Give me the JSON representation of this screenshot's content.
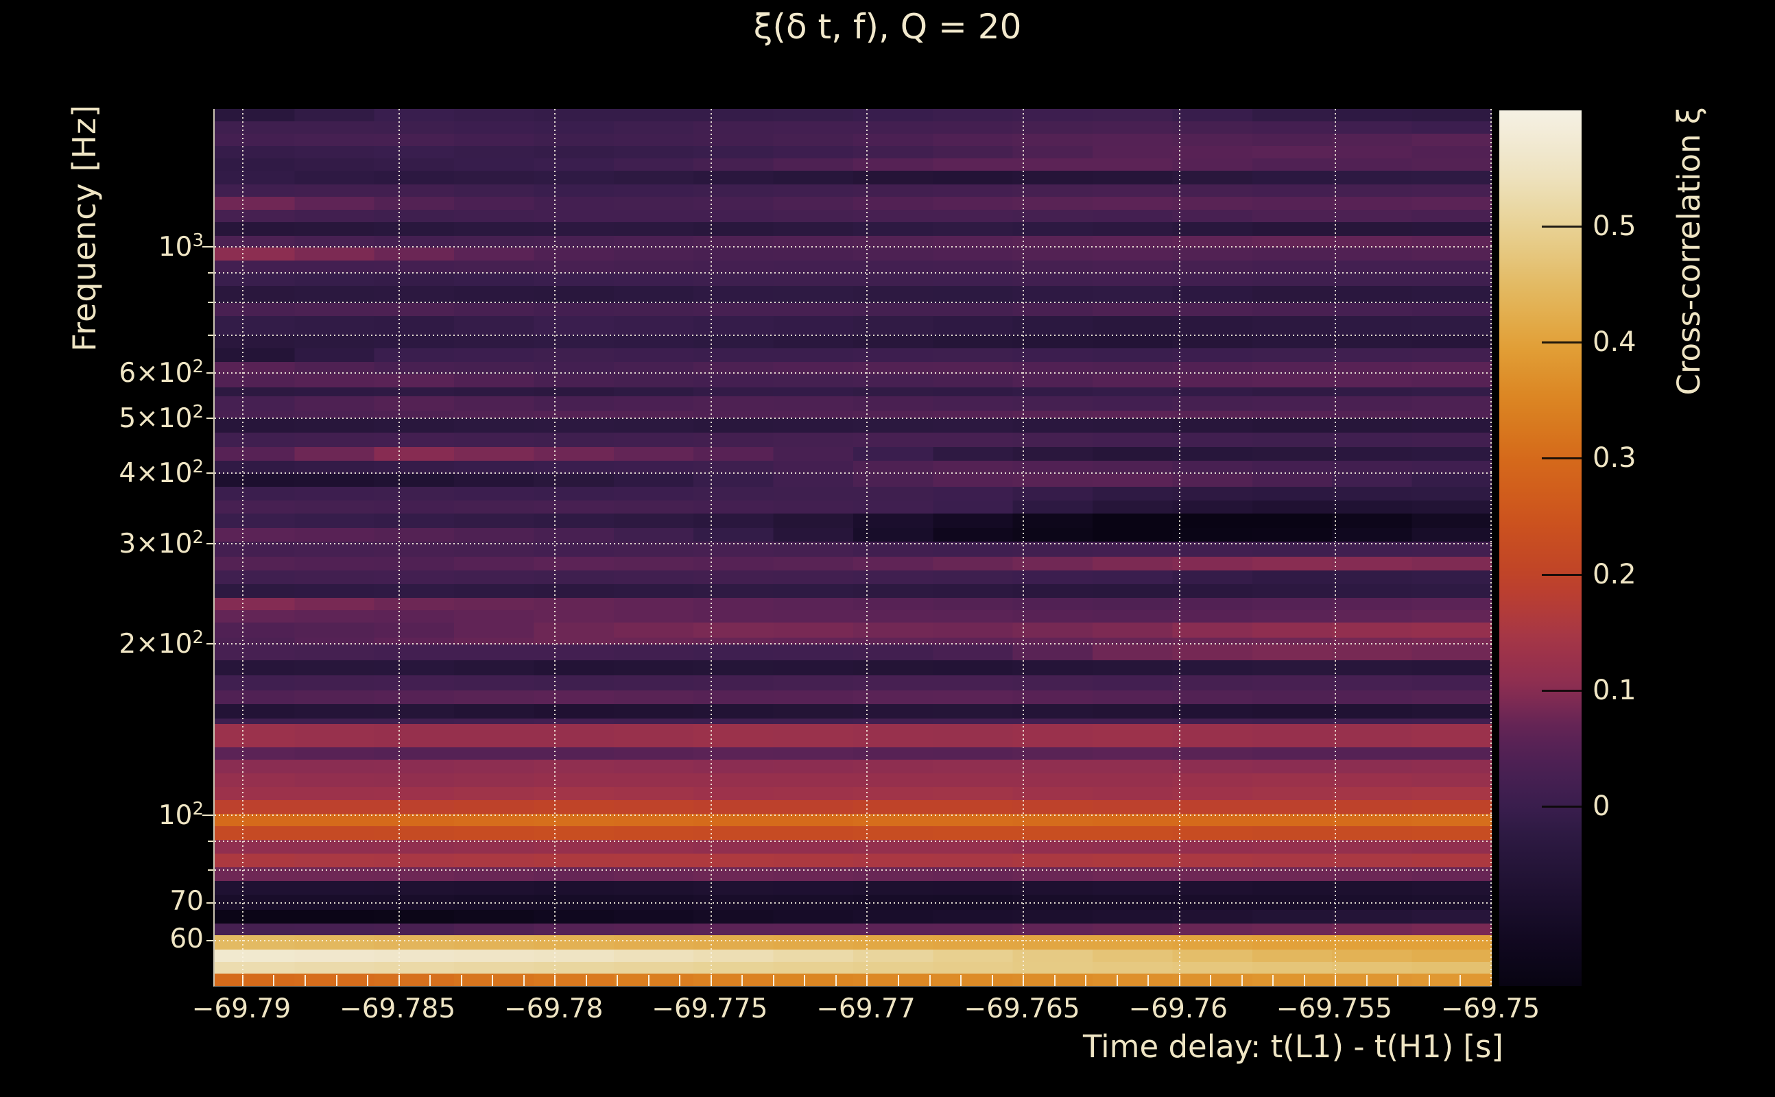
{
  "figure": {
    "title": "ξ(δ t, f), Q = 20"
  },
  "chart_data": {
    "type": "heatmap",
    "title": "ξ(δ t, f), Q = 20",
    "xlabel": "Time delay: t(L1) - t(H1) [s]",
    "ylabel": "Frequency [Hz]",
    "colorbar_label": "Cross-correlation ξ",
    "x_range": [
      -69.7909,
      -69.75
    ],
    "y_range_hz": [
      50,
      1750
    ],
    "y_scale": "log",
    "grid": true,
    "x_ticks": [
      {
        "label": "−69.79",
        "t": -69.79
      },
      {
        "label": "−69.785",
        "t": -69.785
      },
      {
        "label": "−69.78",
        "t": -69.78
      },
      {
        "label": "−69.775",
        "t": -69.775
      },
      {
        "label": "−69.77",
        "t": -69.77
      },
      {
        "label": "−69.765",
        "t": -69.765
      },
      {
        "label": "−69.76",
        "t": -69.76
      },
      {
        "label": "−69.755",
        "t": -69.755
      },
      {
        "label": "−69.75",
        "t": -69.75
      }
    ],
    "x_minor_step": 0.001,
    "y_ticks": [
      {
        "base": "10",
        "exp": "3",
        "f": 1000,
        "major": true
      },
      {
        "base": "6×10",
        "exp": "2",
        "f": 600,
        "major": false
      },
      {
        "base": "5×10",
        "exp": "2",
        "f": 500,
        "major": false
      },
      {
        "base": "4×10",
        "exp": "2",
        "f": 400,
        "major": false
      },
      {
        "base": "3×10",
        "exp": "2",
        "f": 300,
        "major": false
      },
      {
        "base": "2×10",
        "exp": "2",
        "f": 200,
        "major": false
      },
      {
        "base": "10",
        "exp": "2",
        "f": 100,
        "major": true
      },
      {
        "base": "70",
        "exp": "",
        "f": 70,
        "major": false
      },
      {
        "base": "60",
        "exp": "",
        "f": 60,
        "major": false
      }
    ],
    "y_minor_ticks": [
      900,
      800,
      700,
      90,
      80
    ],
    "colorbar": {
      "min": -0.155,
      "max": 0.6,
      "ticks": [
        {
          "label": "0.5",
          "v": 0.5
        },
        {
          "label": "0.4",
          "v": 0.4
        },
        {
          "label": "0.3",
          "v": 0.3
        },
        {
          "label": "0.2",
          "v": 0.2
        },
        {
          "label": "0.1",
          "v": 0.1
        },
        {
          "label": "0",
          "v": 0.0
        }
      ]
    },
    "colormap": [
      [
        -0.16,
        "#070310"
      ],
      [
        -0.12,
        "#10081f"
      ],
      [
        -0.08,
        "#1c0f2e"
      ],
      [
        -0.05,
        "#261539"
      ],
      [
        -0.02,
        "#2f1a44"
      ],
      [
        0.0,
        "#3a1e4e"
      ],
      [
        0.03,
        "#482052"
      ],
      [
        0.06,
        "#5c2356"
      ],
      [
        0.08,
        "#6e2755"
      ],
      [
        0.1,
        "#8a2d52"
      ],
      [
        0.13,
        "#9c324b"
      ],
      [
        0.15,
        "#a83845"
      ],
      [
        0.18,
        "#b93d32"
      ],
      [
        0.2,
        "#c04428"
      ],
      [
        0.25,
        "#cd541d"
      ],
      [
        0.3,
        "#d56a1b"
      ],
      [
        0.35,
        "#db8422"
      ],
      [
        0.4,
        "#e2a139"
      ],
      [
        0.45,
        "#e3bb64"
      ],
      [
        0.5,
        "#e8d295"
      ],
      [
        0.55,
        "#efe4c4"
      ],
      [
        0.6,
        "#f5f1e4"
      ]
    ],
    "columns": 8,
    "rows": [
      {
        "h": 18,
        "v": [
          -0.05,
          0.0,
          -0.01,
          -0.01,
          0.0,
          0.01,
          -0.02,
          -0.03
        ]
      },
      {
        "h": 18,
        "v": [
          0.01,
          0.01,
          0.0,
          0.02,
          0.02,
          0.03,
          0.02,
          0.0
        ]
      },
      {
        "h": 18,
        "v": [
          0.02,
          0.03,
          0.01,
          0.02,
          0.04,
          0.05,
          0.04,
          0.06
        ]
      },
      {
        "h": 18,
        "v": [
          -0.01,
          0.0,
          -0.01,
          0.0,
          0.02,
          0.05,
          0.06,
          0.04
        ]
      },
      {
        "h": 18,
        "v": [
          -0.02,
          -0.01,
          0.0,
          0.03,
          0.06,
          0.06,
          0.04,
          0.05
        ]
      },
      {
        "h": 20,
        "v": [
          -0.01,
          -0.03,
          -0.02,
          -0.04,
          -0.06,
          -0.05,
          -0.03,
          -0.02
        ]
      },
      {
        "h": 18,
        "v": [
          0.01,
          0.02,
          0.0,
          0.01,
          0.02,
          0.03,
          0.02,
          0.03
        ]
      },
      {
        "h": 19,
        "v": [
          0.09,
          0.05,
          0.02,
          0.03,
          0.05,
          0.06,
          0.05,
          0.06
        ]
      },
      {
        "h": 18,
        "v": [
          0.03,
          0.01,
          0.02,
          0.02,
          0.03,
          0.02,
          0.04,
          0.03
        ]
      },
      {
        "h": 20,
        "v": [
          -0.05,
          -0.04,
          -0.03,
          -0.04,
          -0.02,
          -0.03,
          -0.05,
          -0.04
        ]
      },
      {
        "h": 17,
        "v": [
          0.04,
          0.02,
          0.03,
          0.04,
          0.05,
          0.06,
          0.07,
          0.06
        ]
      },
      {
        "h": 19,
        "v": [
          0.11,
          0.08,
          0.04,
          0.03,
          0.04,
          0.05,
          0.04,
          0.05
        ]
      },
      {
        "h": 18,
        "v": [
          0.02,
          0.02,
          0.03,
          0.02,
          0.02,
          0.03,
          0.02,
          0.02
        ]
      },
      {
        "h": 19,
        "v": [
          0.0,
          -0.01,
          0.0,
          0.01,
          0.01,
          0.02,
          0.01,
          0.01
        ]
      },
      {
        "h": 25,
        "v": [
          -0.04,
          -0.03,
          -0.04,
          -0.02,
          -0.03,
          -0.02,
          -0.04,
          -0.03
        ]
      },
      {
        "h": 19,
        "v": [
          0.03,
          0.04,
          0.02,
          0.03,
          0.02,
          0.04,
          0.03,
          0.02
        ]
      },
      {
        "h": 28,
        "v": [
          -0.01,
          -0.02,
          0.0,
          -0.01,
          -0.02,
          -0.04,
          -0.03,
          -0.02
        ]
      },
      {
        "h": 19,
        "v": [
          -0.04,
          -0.03,
          -0.02,
          -0.03,
          -0.05,
          -0.06,
          -0.04,
          -0.05
        ]
      },
      {
        "h": 20,
        "v": [
          -0.07,
          0.0,
          0.01,
          0.0,
          0.01,
          0.0,
          0.01,
          0.02
        ]
      },
      {
        "h": 18,
        "v": [
          0.06,
          0.03,
          0.02,
          0.04,
          0.05,
          0.04,
          0.05,
          0.06
        ]
      },
      {
        "h": 19,
        "v": [
          0.04,
          0.06,
          0.03,
          0.02,
          0.03,
          0.05,
          0.06,
          0.05
        ]
      },
      {
        "h": 13,
        "v": [
          -0.03,
          -0.02,
          -0.03,
          -0.01,
          -0.02,
          -0.01,
          -0.02,
          -0.01
        ]
      },
      {
        "h": 21,
        "v": [
          0.02,
          0.05,
          0.03,
          0.04,
          0.03,
          0.02,
          0.03,
          0.04
        ]
      },
      {
        "h": 11,
        "v": [
          0.03,
          0.04,
          0.05,
          0.04,
          0.05,
          0.06,
          0.05,
          0.04
        ]
      },
      {
        "h": 21,
        "v": [
          -0.05,
          -0.04,
          -0.03,
          -0.04,
          -0.03,
          -0.04,
          -0.05,
          -0.04
        ]
      },
      {
        "h": 21,
        "v": [
          0.01,
          0.02,
          0.01,
          0.02,
          0.03,
          0.02,
          0.01,
          0.02
        ]
      },
      {
        "h": 20,
        "v": [
          0.04,
          0.1,
          0.08,
          0.05,
          -0.02,
          -0.05,
          -0.04,
          -0.03
        ]
      },
      {
        "h": 19,
        "v": [
          -0.02,
          -0.01,
          0.0,
          0.01,
          0.05,
          0.04,
          0.02,
          0.01
        ]
      },
      {
        "h": 19,
        "v": [
          -0.08,
          -0.07,
          -0.04,
          0.0,
          0.05,
          0.06,
          0.03,
          -0.02
        ]
      },
      {
        "h": 20,
        "v": [
          0.0,
          0.01,
          0.0,
          0.01,
          0.01,
          -0.02,
          -0.03,
          -0.02
        ]
      },
      {
        "h": 19,
        "v": [
          0.03,
          0.02,
          0.03,
          0.02,
          0.01,
          -0.05,
          -0.07,
          -0.06
        ]
      },
      {
        "h": 21,
        "v": [
          0.0,
          -0.01,
          -0.02,
          -0.04,
          -0.1,
          -0.15,
          -0.15,
          -0.1
        ]
      },
      {
        "h": 20,
        "v": [
          0.06,
          0.05,
          0.03,
          -0.02,
          -0.12,
          -0.15,
          -0.14,
          -0.08
        ]
      },
      {
        "h": 22,
        "v": [
          0.02,
          0.03,
          0.02,
          0.03,
          0.01,
          0.02,
          0.01,
          0.02
        ]
      },
      {
        "h": 20,
        "v": [
          0.05,
          0.04,
          0.06,
          0.05,
          0.07,
          0.09,
          0.1,
          0.09
        ]
      },
      {
        "h": 20,
        "v": [
          0.01,
          0.02,
          0.01,
          0.02,
          0.01,
          0.0,
          -0.02,
          -0.01
        ]
      },
      {
        "h": 20,
        "v": [
          -0.03,
          -0.02,
          -0.03,
          -0.02,
          -0.03,
          -0.04,
          -0.03,
          -0.02
        ]
      },
      {
        "h": 18,
        "v": [
          0.1,
          0.08,
          0.07,
          0.06,
          0.05,
          0.04,
          0.05,
          0.06
        ]
      },
      {
        "h": 18,
        "v": [
          0.07,
          0.06,
          0.07,
          0.06,
          0.06,
          0.05,
          0.06,
          0.07
        ]
      },
      {
        "h": 22,
        "v": [
          0.04,
          0.05,
          0.08,
          0.09,
          0.08,
          0.09,
          0.11,
          0.12
        ]
      },
      {
        "h": 10,
        "v": [
          0.03,
          0.06,
          0.08,
          0.07,
          0.06,
          0.07,
          0.08,
          0.09
        ]
      },
      {
        "h": 23,
        "v": [
          0.03,
          0.02,
          0.02,
          0.01,
          0.02,
          0.08,
          0.09,
          0.08
        ]
      },
      {
        "h": 22,
        "v": [
          -0.05,
          -0.04,
          -0.06,
          -0.05,
          -0.06,
          -0.05,
          -0.04,
          -0.05
        ]
      },
      {
        "h": 22,
        "v": [
          0.01,
          0.02,
          0.01,
          0.02,
          0.03,
          0.02,
          0.03,
          0.02
        ]
      },
      {
        "h": 20,
        "v": [
          0.04,
          0.05,
          0.06,
          0.05,
          0.06,
          0.05,
          0.04,
          0.05
        ]
      },
      {
        "h": 21,
        "v": [
          -0.06,
          -0.05,
          -0.07,
          -0.06,
          -0.05,
          -0.06,
          -0.07,
          -0.06
        ]
      },
      {
        "h": 8,
        "v": [
          0.01,
          0.01,
          0.02,
          0.01,
          0.02,
          0.02,
          0.01,
          0.02
        ]
      },
      {
        "h": 34,
        "v": [
          0.13,
          0.12,
          0.12,
          0.13,
          0.12,
          0.13,
          0.12,
          0.13
        ]
      },
      {
        "h": 18,
        "v": [
          0.06,
          0.05,
          0.05,
          0.06,
          0.05,
          0.06,
          0.05,
          0.05
        ]
      },
      {
        "h": 20,
        "v": [
          0.1,
          0.1,
          0.11,
          0.1,
          0.11,
          0.11,
          0.1,
          0.11
        ]
      },
      {
        "h": 20,
        "v": [
          0.12,
          0.11,
          0.12,
          0.12,
          0.12,
          0.12,
          0.13,
          0.12
        ]
      },
      {
        "h": 19,
        "v": [
          0.13,
          0.13,
          0.14,
          0.13,
          0.14,
          0.13,
          0.14,
          0.15
        ]
      },
      {
        "h": 20,
        "v": [
          0.19,
          0.19,
          0.2,
          0.19,
          0.2,
          0.19,
          0.19,
          0.2
        ]
      },
      {
        "h": 18,
        "v": [
          0.3,
          0.3,
          0.31,
          0.3,
          0.31,
          0.3,
          0.3,
          0.31
        ]
      },
      {
        "h": 20,
        "v": [
          0.22,
          0.22,
          0.23,
          0.22,
          0.23,
          0.23,
          0.22,
          0.23
        ]
      },
      {
        "h": 20,
        "v": [
          0.11,
          0.11,
          0.12,
          0.11,
          0.12,
          0.11,
          0.12,
          0.11
        ]
      },
      {
        "h": 20,
        "v": [
          0.16,
          0.15,
          0.16,
          0.16,
          0.15,
          0.16,
          0.15,
          0.16
        ]
      },
      {
        "h": 20,
        "v": [
          0.08,
          0.08,
          0.07,
          0.08,
          0.07,
          0.08,
          0.08,
          0.07
        ]
      },
      {
        "h": 20,
        "v": [
          -0.07,
          -0.07,
          -0.08,
          -0.07,
          -0.08,
          -0.07,
          -0.08,
          -0.07
        ]
      },
      {
        "h": 22,
        "v": [
          -0.09,
          -0.09,
          -0.1,
          -0.09,
          -0.1,
          -0.09,
          -0.09,
          -0.08
        ]
      },
      {
        "h": 20,
        "v": [
          -0.14,
          -0.14,
          -0.12,
          -0.1,
          -0.085,
          -0.075,
          -0.06,
          -0.045
        ]
      },
      {
        "h": 17,
        "v": [
          0.025,
          0.03,
          0.05,
          0.06,
          0.06,
          0.07,
          0.08,
          0.09
        ]
      },
      {
        "h": 21,
        "v": [
          0.45,
          0.44,
          0.43,
          0.42,
          0.41,
          0.41,
          0.4,
          0.4
        ]
      },
      {
        "h": 18,
        "v": [
          0.57,
          0.56,
          0.55,
          0.53,
          0.5,
          0.47,
          0.44,
          0.42
        ]
      },
      {
        "h": 17,
        "v": [
          0.53,
          0.52,
          0.51,
          0.5,
          0.49,
          0.48,
          0.47,
          0.46
        ]
      },
      {
        "h": 18,
        "v": [
          0.3,
          0.31,
          0.33,
          0.35,
          0.36,
          0.37,
          0.38,
          0.385
        ]
      }
    ]
  }
}
